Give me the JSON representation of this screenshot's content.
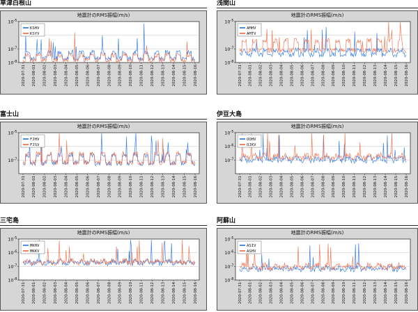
{
  "colors": {
    "box_bg": "#d6d6d6",
    "plot_bg": "#ffffff",
    "series1": "#1e6fe0",
    "series2": "#f0643c",
    "grid": "#c8c8c8"
  },
  "chart_data": [
    {
      "type": "line",
      "station": "草津白根山",
      "title": "地震計のRMS振幅(m/s)",
      "y_ticks": [
        "10^-5",
        "10^-7",
        "10^-8"
      ],
      "ylim_log10": [
        -8,
        -5
      ],
      "x_tick_labels": [
        "2020-07-31",
        "2020-08-01",
        "2020-08-02",
        "2020-08-03",
        "2020-08-04",
        "2020-08-05",
        "2020-08-06",
        "2020-08-07",
        "2020-08-08",
        "2020-08-09",
        "2020-08-10",
        "2020-08-11",
        "2020-08-12",
        "2020-08-13",
        "2020-08-14",
        "2020-08-15",
        "2020-08-16"
      ],
      "series": [
        {
          "name": "KSHV",
          "baseline_log10": -7.6,
          "daily_amp": 0.35
        },
        {
          "name": "KSYV",
          "baseline_log10": -7.75,
          "daily_amp": 0.3
        }
      ]
    },
    {
      "type": "line",
      "station": "浅間山",
      "title": "地震計のRMS振幅(m/s)",
      "y_ticks": [
        "10^-5",
        "10^-7",
        "10^-8"
      ],
      "ylim_log10": [
        -8,
        -5
      ],
      "x_tick_labels": [
        "2020-07-31",
        "2020-08-01",
        "2020-08-02",
        "2020-08-03",
        "2020-08-04",
        "2020-08-05",
        "2020-08-06",
        "2020-08-07",
        "2020-08-08",
        "2020-08-09",
        "2020-08-10",
        "2020-08-11",
        "2020-08-12",
        "2020-08-13",
        "2020-08-14",
        "2020-08-15",
        "2020-08-16"
      ],
      "series": [
        {
          "name": "AMHV",
          "baseline_log10": -7.35,
          "daily_amp": 0.25
        },
        {
          "name": "AMTV",
          "baseline_log10": -6.95,
          "daily_amp": 0.55
        }
      ]
    },
    {
      "type": "line",
      "station": "富士山",
      "title": "地震計のRMS振幅(m/s)",
      "y_ticks": [
        "10^-5",
        "10^-7"
      ],
      "ylim_log10": [
        -8,
        -5
      ],
      "x_tick_labels": [
        "2020-07-31",
        "2020-08-01",
        "2020-08-02",
        "2020-08-03",
        "2020-08-04",
        "2020-08-05",
        "2020-08-06",
        "2020-08-07",
        "2020-08-08",
        "2020-08-09",
        "2020-08-10",
        "2020-08-11",
        "2020-08-12",
        "2020-08-13",
        "2020-08-14",
        "2020-08-15",
        "2020-08-16"
      ],
      "series": [
        {
          "name": "FJHV",
          "baseline_log10": -7.1,
          "daily_amp": 0.45
        },
        {
          "name": "FJSV",
          "baseline_log10": -7.05,
          "daily_amp": 0.5
        }
      ]
    },
    {
      "type": "line",
      "station": "伊豆大島",
      "title": "地震計のRMS振幅(m/s)",
      "y_ticks": [
        "10^-5",
        "10^-6",
        "10^-7"
      ],
      "ylim_log10": [
        -8,
        -5
      ],
      "x_tick_labels": [
        "2020-07-31",
        "2020-08-01",
        "2020-08-02",
        "2020-08-03",
        "2020-08-04",
        "2020-08-05",
        "2020-08-06",
        "2020-08-07",
        "2020-08-08",
        "2020-08-09",
        "2020-08-10",
        "2020-08-11",
        "2020-08-12",
        "2020-08-13",
        "2020-08-14",
        "2020-08-15",
        "2020-08-16"
      ],
      "series": [
        {
          "name": "OOHV",
          "baseline_log10": -7.0,
          "daily_amp": 0.15
        },
        {
          "name": "OJKV",
          "baseline_log10": -6.8,
          "daily_amp": 0.15
        }
      ]
    },
    {
      "type": "line",
      "station": "三宅島",
      "title": "地震計のRMS振幅(m/s)",
      "y_ticks": [
        "10^-5",
        "10^-6",
        "10^-7",
        "10^-8"
      ],
      "ylim_log10": [
        -8,
        -5
      ],
      "x_tick_labels": [
        "2020-07-31",
        "2020-08-01",
        "2020-08-02",
        "2020-08-03",
        "2020-08-04",
        "2020-08-05",
        "2020-08-06",
        "2020-08-07",
        "2020-08-08",
        "2020-08-09",
        "2020-08-10",
        "2020-08-11",
        "2020-08-12",
        "2020-08-13",
        "2020-08-14",
        "2020-08-15",
        "2020-08-16"
      ],
      "series": [
        {
          "name": "MKHV",
          "baseline_log10": -6.75,
          "daily_amp": 0.12
        },
        {
          "name": "MKKV",
          "baseline_log10": -6.7,
          "daily_amp": 0.12
        }
      ]
    },
    {
      "type": "line",
      "station": "阿蘇山",
      "title": "地震計のRMS振幅(m/s)",
      "y_ticks": [
        "10^-5",
        "10^-6",
        "10^-7",
        "10^-8"
      ],
      "ylim_log10": [
        -8,
        -5
      ],
      "x_tick_labels": [
        "2020-07-31",
        "2020-08-01",
        "2020-08-02",
        "2020-08-03",
        "2020-08-04",
        "2020-08-05",
        "2020-08-06",
        "2020-08-07",
        "2020-08-08",
        "2020-08-09",
        "2020-08-10",
        "2020-08-11",
        "2020-08-12",
        "2020-08-13",
        "2020-08-14",
        "2020-08-15",
        "2020-08-16"
      ],
      "series": [
        {
          "name": "ASIV",
          "baseline_log10": -7.2,
          "daily_amp": 0.12
        },
        {
          "name": "ASHV",
          "baseline_log10": -7.05,
          "daily_amp": 0.15
        }
      ]
    }
  ]
}
